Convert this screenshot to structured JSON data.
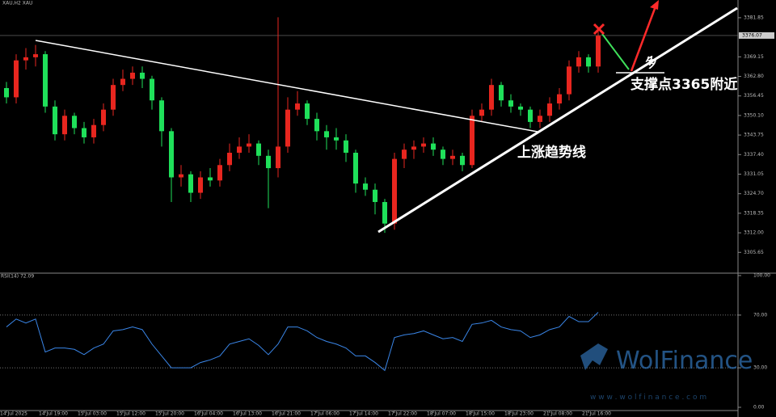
{
  "chart_data": [
    {
      "type": "candlestick",
      "title": "XAU,H2  XAU",
      "categories": [
        "14 Jul 2025",
        null,
        null,
        null,
        "14 Jul 19:00",
        null,
        null,
        null,
        "15 Jul 03:00",
        null,
        null,
        null,
        "15 Jul 12:00",
        null,
        null,
        null,
        "15 Jul 20:00",
        null,
        null,
        null,
        "16 Jul 04:00",
        null,
        null,
        null,
        "16 Jul 13:00",
        null,
        null,
        null,
        "16 Jul 21:00",
        null,
        null,
        null,
        "17 Jul 06:00",
        null,
        null,
        null,
        "17 Jul 14:00",
        null,
        null,
        null,
        "17 Jul 22:00",
        null,
        null,
        null,
        "18 Jul 07:00",
        null,
        null,
        null,
        "18 Jul 15:00",
        null,
        null,
        null,
        "18 Jul 23:00",
        null,
        null,
        null,
        "21 Jul 08:00",
        null,
        null,
        null,
        "21 Jul 16:00",
        null
      ],
      "open": [
        3359,
        3356,
        3368,
        3369,
        3370,
        3353,
        3344,
        3350,
        3346,
        3343,
        3347,
        3352,
        3360,
        3362,
        3364,
        3362,
        3355,
        3345,
        3330,
        3331,
        3325,
        3330,
        3329,
        3334,
        3338,
        3340,
        3341,
        3337,
        3333,
        3340,
        3352,
        3354,
        3349,
        3345,
        3343,
        3342,
        3338,
        3328,
        3326,
        3322,
        3315,
        3336,
        3339,
        3340,
        3341,
        3339,
        3336,
        3337,
        3334,
        3350,
        3352,
        3360,
        3355,
        3353,
        3352,
        3348,
        3350,
        3354,
        3357,
        3366,
        3369,
        3366
      ],
      "high": [
        3361,
        3370,
        3372,
        3373,
        3371,
        3355,
        3352,
        3351,
        3348,
        3349,
        3354,
        3362,
        3365,
        3366,
        3366,
        3363,
        3356,
        3346,
        3334,
        3332,
        3332,
        3333,
        3336,
        3341,
        3343,
        3344,
        3342,
        3339,
        3382,
        3356,
        3358,
        3355,
        3351,
        3347,
        3346,
        3344,
        3339,
        3330,
        3328,
        3323,
        3338,
        3341,
        3342,
        3343,
        3343,
        3340,
        3339,
        3338,
        3352,
        3354,
        3362,
        3361,
        3357,
        3354,
        3353,
        3352,
        3356,
        3359,
        3368,
        3371,
        3370,
        3378
      ],
      "low": [
        3354,
        3354,
        3365,
        3366,
        3351,
        3342,
        3342,
        3344,
        3341,
        3341,
        3345,
        3350,
        3358,
        3360,
        3359,
        3352,
        3340,
        3322,
        3327,
        3322,
        3323,
        3327,
        3327,
        3332,
        3336,
        3338,
        3334,
        3320,
        3330,
        3338,
        3350,
        3347,
        3342,
        3339,
        3339,
        3335,
        3325,
        3324,
        3318,
        3312,
        3313,
        3333,
        3336,
        3338,
        3337,
        3334,
        3334,
        3332,
        3333,
        3348,
        3350,
        3353,
        3351,
        3350,
        3346,
        3346,
        3348,
        3352,
        3355,
        3364,
        3364,
        3364
      ],
      "close": [
        3356,
        3368,
        3369,
        3370,
        3353,
        3344,
        3350,
        3346,
        3343,
        3347,
        3352,
        3360,
        3362,
        3364,
        3362,
        3355,
        3345,
        3330,
        3331,
        3325,
        3330,
        3329,
        3334,
        3338,
        3340,
        3341,
        3337,
        3333,
        3340,
        3352,
        3354,
        3349,
        3345,
        3343,
        3342,
        3338,
        3328,
        3326,
        3322,
        3315,
        3336,
        3339,
        3340,
        3341,
        3339,
        3336,
        3337,
        3334,
        3350,
        3352,
        3360,
        3355,
        3353,
        3352,
        3348,
        3350,
        3354,
        3357,
        3366,
        3369,
        3366,
        3376
      ],
      "up_color": "#e8261f",
      "down_color": "#1fe05a",
      "ylim": [
        3298.9,
        3387.6
      ],
      "yticks": [
        {
          "value": 3381.85,
          "label": "3381.85"
        },
        {
          "value": 3369.15,
          "label": "3369.15"
        },
        {
          "value": 3362.8,
          "label": "3362.80"
        },
        {
          "value": 3356.45,
          "label": "3356.45"
        },
        {
          "value": 3350.1,
          "label": "3350.10"
        },
        {
          "value": 3343.75,
          "label": "3343.75"
        },
        {
          "value": 3337.4,
          "label": "3337.40"
        },
        {
          "value": 3331.05,
          "label": "3331.05"
        },
        {
          "value": 3324.7,
          "label": "3324.70"
        },
        {
          "value": 3318.35,
          "label": "3318.35"
        },
        {
          "value": 3312,
          "label": "3312.00"
        },
        {
          "value": 3305.65,
          "label": "3305.65"
        }
      ],
      "last_price": {
        "value": 3376.07,
        "label": "3376.07"
      }
    },
    {
      "type": "line",
      "title": "RSI(14) 72.09",
      "color": "#3a86e8",
      "values": [
        61,
        67,
        64,
        67,
        42,
        45,
        45,
        44,
        40,
        45,
        48,
        58,
        59,
        61,
        59,
        48,
        39,
        30,
        30,
        30,
        34,
        36,
        39,
        48,
        50,
        52,
        47,
        40,
        48,
        61,
        61,
        58,
        53,
        50,
        48,
        45,
        39,
        39,
        34,
        28,
        53,
        55,
        56,
        58,
        55,
        52,
        53,
        50,
        63,
        64,
        66,
        61,
        59,
        58,
        53,
        55,
        59,
        61,
        69,
        65,
        65,
        72.09
      ],
      "ylim": [
        0,
        100
      ],
      "yticks": [
        {
          "value": 100,
          "label": "100.00"
        },
        {
          "value": 70,
          "label": "70.00"
        },
        {
          "value": 30,
          "label": "30.00"
        },
        {
          "value": 0,
          "label": "0.00"
        }
      ],
      "levels": [
        70,
        30
      ]
    }
  ],
  "annotations": {
    "trend_label": "上涨趋势线",
    "support_label": "支撑点3365附近",
    "long_label": "多"
  },
  "watermark": {
    "brand": "WolFinance",
    "url": "w w w . w o l f i n a n c e . c o m"
  }
}
